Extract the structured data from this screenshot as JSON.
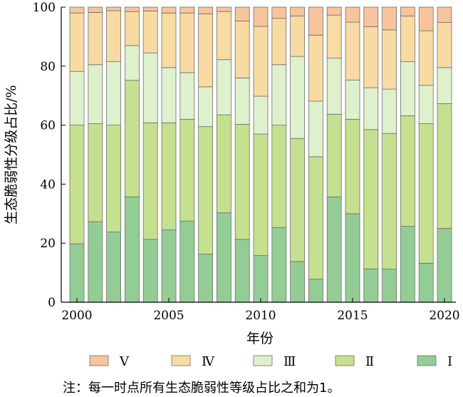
{
  "chart_data": {
    "type": "bar",
    "stacked": true,
    "xlabel": "年份",
    "ylabel": "生态脆弱性分级占比/%",
    "ylim": [
      0,
      100
    ],
    "yticks": [
      0,
      20,
      40,
      60,
      80,
      100
    ],
    "x_tick_labels": [
      "2000",
      "2005",
      "2010",
      "2015",
      "2020"
    ],
    "categories": [
      2000,
      2001,
      2002,
      2003,
      2004,
      2005,
      2006,
      2007,
      2008,
      2009,
      2010,
      2011,
      2012,
      2013,
      2014,
      2015,
      2016,
      2017,
      2018,
      2019,
      2020
    ],
    "legend_position": "bottom",
    "series": [
      {
        "name": "Ⅰ",
        "color": "#93cd95",
        "values": [
          19.8,
          27.3,
          23.8,
          35.7,
          21.3,
          24.5,
          27.5,
          16.3,
          30.3,
          21.3,
          15.8,
          25.3,
          13.8,
          7.8,
          35.7,
          30.0,
          11.3,
          11.2,
          25.7,
          13.2,
          25.0
        ]
      },
      {
        "name": "Ⅱ",
        "color": "#c5e08f",
        "values": [
          40.2,
          33.2,
          36.2,
          39.5,
          39.5,
          36.3,
          34.5,
          43.2,
          33.2,
          39.0,
          41.2,
          34.7,
          41.7,
          41.5,
          28.0,
          32.0,
          47.2,
          46.0,
          37.5,
          47.3,
          42.3
        ]
      },
      {
        "name": "Ⅲ",
        "color": "#dff0cc",
        "values": [
          18.2,
          20.0,
          21.5,
          11.8,
          23.7,
          18.7,
          15.8,
          13.5,
          18.7,
          15.7,
          12.8,
          20.5,
          27.8,
          18.8,
          19.0,
          13.3,
          14.2,
          15.0,
          18.3,
          13.0,
          12.2
        ]
      },
      {
        "name": "Ⅳ",
        "color": "#f8dba3",
        "values": [
          19.8,
          17.7,
          17.3,
          11.5,
          14.2,
          18.5,
          20.2,
          24.7,
          16.3,
          19.3,
          23.7,
          15.7,
          13.7,
          22.4,
          14.6,
          19.6,
          20.7,
          20.1,
          15.5,
          18.5,
          15.3
        ]
      },
      {
        "name": "Ⅴ",
        "color": "#f7c49b",
        "values": [
          2.0,
          1.8,
          1.2,
          1.5,
          1.3,
          2.0,
          2.0,
          2.3,
          1.5,
          4.7,
          6.5,
          3.8,
          3.0,
          9.5,
          2.7,
          5.1,
          6.6,
          7.7,
          3.0,
          8.0,
          5.2
        ]
      }
    ],
    "legend_order": [
      "Ⅴ",
      "Ⅳ",
      "Ⅲ",
      "Ⅱ",
      "Ⅰ"
    ],
    "edge_color": "#6e6e6e",
    "note": "注：每一时点所有生态脆弱性等级占比之和为1。"
  }
}
